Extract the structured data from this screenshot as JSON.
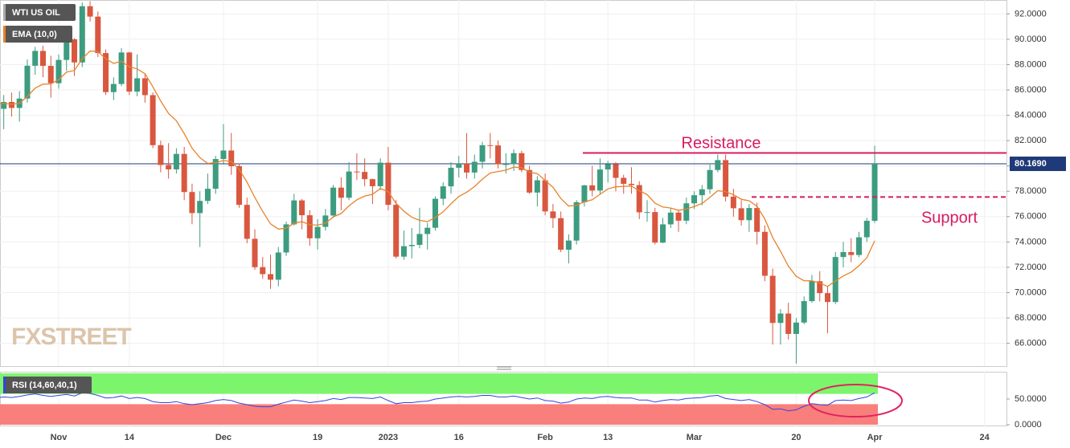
{
  "chart_data": {
    "type": "candlestick",
    "title": "WTI US OIL",
    "watermark": "FXSTREET",
    "categories": [
      null,
      null,
      null,
      null,
      null,
      null,
      null,
      null,
      "Nov",
      null,
      null,
      null,
      null,
      null,
      null,
      null,
      null,
      "14",
      null,
      null,
      null,
      null,
      null,
      null,
      null,
      null,
      null,
      null,
      null,
      "Dec",
      null,
      null,
      null,
      null,
      null,
      null,
      null,
      null,
      null,
      null,
      null,
      "19",
      null,
      null,
      null,
      null,
      null,
      null,
      null,
      null,
      "2023",
      null,
      null,
      null,
      null,
      null,
      null,
      null,
      null,
      "16",
      null,
      null,
      null,
      null,
      null,
      null,
      null,
      null,
      null,
      null,
      "Feb",
      null,
      null,
      null,
      null,
      null,
      null,
      null,
      "13",
      null,
      null,
      null,
      null,
      null,
      null,
      null,
      null,
      null,
      null,
      "Mar",
      null,
      null,
      null,
      null,
      null,
      null,
      null,
      null,
      null,
      null,
      null,
      null,
      "20",
      null,
      null,
      null,
      null,
      null,
      null,
      null,
      null,
      null,
      "Apr",
      null,
      null,
      null,
      null,
      null,
      null,
      null,
      null,
      null,
      null,
      null,
      null,
      null,
      "24"
    ],
    "open": [
      84.2,
      84.51,
      85.05,
      84.58,
      85.32,
      87.91,
      89.08,
      87.9,
      86.53,
      88.37,
      90.0,
      88.17,
      92.61,
      91.79,
      88.91,
      85.83,
      86.47,
      88.96,
      85.87,
      86.92,
      85.59,
      81.64,
      80.08,
      79.73,
      80.95,
      77.94,
      76.28,
      77.24,
      78.2,
      80.55,
      81.22,
      79.98,
      76.93,
      74.25,
      72.01,
      71.46,
      71.02,
      73.17,
      75.39,
      77.28,
      76.11,
      74.29,
      75.19,
      76.09,
      78.29,
      77.49,
      79.56,
      79.53,
      78.96,
      78.4,
      80.26,
      76.93,
      72.84,
      73.67,
      73.77,
      74.63,
      75.12,
      77.41,
      78.39,
      79.86,
      80.18,
      79.48,
      80.33,
      81.64,
      81.62,
      80.13,
      80.15,
      81.01,
      79.68,
      77.9,
      78.87,
      76.41,
      75.88,
      73.39,
      74.11,
      77.14,
      78.47,
      78.06,
      79.72,
      80.14,
      79.06,
      78.59,
      78.49,
      76.34,
      76.36,
      73.95,
      75.39,
      76.32,
      75.68,
      77.05,
      77.69,
      78.16,
      79.68,
      80.46,
      77.58,
      76.66,
      75.72,
      76.68,
      74.8,
      71.33,
      67.61,
      68.35,
      66.74,
      67.64,
      69.33,
      70.9,
      69.96,
      69.26,
      72.81,
      73.2,
      72.97,
      74.37,
      75.67,
      null,
      null,
      null,
      null,
      null,
      null,
      null,
      null,
      null,
      null,
      null,
      null,
      null,
      null
    ],
    "high": [
      85.3,
      85.6,
      85.8,
      85.9,
      88.4,
      89.4,
      89.5,
      88.7,
      88.8,
      90.4,
      90.1,
      92.9,
      93.0,
      92.2,
      89.2,
      87.0,
      89.3,
      89.0,
      88.8,
      87.3,
      85.8,
      82.0,
      81.8,
      81.4,
      81.5,
      78.6,
      78.0,
      79.4,
      80.8,
      83.3,
      82.6,
      80.2,
      77.5,
      75.0,
      72.8,
      73.0,
      73.6,
      75.6,
      77.8,
      77.4,
      76.5,
      75.8,
      76.6,
      78.5,
      79.1,
      80.3,
      81.0,
      80.6,
      79.0,
      80.6,
      81.5,
      77.3,
      74.9,
      75.1,
      76.7,
      75.5,
      77.6,
      78.7,
      80.3,
      80.8,
      82.6,
      80.9,
      81.9,
      82.6,
      82.0,
      81.0,
      81.3,
      81.2,
      80.0,
      79.2,
      79.4,
      77.0,
      76.4,
      74.6,
      77.3,
      78.5,
      80.0,
      80.6,
      80.4,
      80.3,
      79.3,
      79.9,
      78.8,
      77.3,
      76.7,
      75.9,
      76.7,
      76.5,
      77.5,
      78.0,
      78.5,
      80.1,
      80.9,
      80.9,
      78.2,
      77.3,
      77.0,
      77.1,
      75.3,
      71.9,
      68.7,
      69.2,
      68.0,
      69.7,
      71.4,
      71.7,
      70.5,
      73.2,
      74.0,
      74.3,
      74.8,
      75.9,
      81.6,
      null,
      null,
      null,
      null,
      null,
      null,
      null,
      null,
      null,
      null,
      null,
      null,
      null,
      null
    ],
    "low": [
      83.6,
      82.9,
      83.9,
      83.5,
      85.0,
      87.2,
      87.0,
      85.4,
      86.1,
      87.5,
      87.1,
      87.8,
      91.4,
      88.6,
      85.6,
      85.2,
      86.3,
      85.6,
      85.5,
      85.0,
      81.4,
      79.5,
      79.0,
      79.4,
      77.3,
      75.4,
      73.6,
      77.0,
      77.8,
      80.2,
      79.3,
      76.7,
      73.9,
      71.8,
      71.1,
      70.3,
      70.5,
      72.9,
      75.3,
      75.0,
      73.7,
      73.4,
      74.9,
      75.9,
      76.5,
      77.3,
      78.9,
      78.4,
      77.0,
      78.1,
      76.5,
      72.7,
      72.6,
      72.7,
      73.5,
      73.4,
      74.9,
      76.9,
      77.8,
      79.1,
      79.0,
      79.0,
      79.8,
      80.6,
      79.8,
      79.4,
      79.6,
      79.5,
      77.8,
      76.8,
      76.1,
      75.1,
      73.2,
      72.3,
      73.8,
      76.8,
      77.6,
      77.8,
      78.7,
      78.0,
      77.8,
      77.8,
      75.8,
      75.6,
      73.8,
      73.9,
      75.1,
      74.8,
      75.4,
      76.6,
      76.9,
      77.8,
      79.5,
      77.2,
      76.0,
      75.3,
      74.8,
      73.8,
      70.9,
      65.9,
      65.9,
      66.3,
      64.4,
      67.5,
      69.2,
      69.3,
      66.8,
      69.1,
      72.0,
      72.4,
      72.8,
      74.0,
      75.5,
      null,
      null,
      null,
      null,
      null,
      null,
      null,
      null,
      null,
      null,
      null,
      null,
      null,
      null
    ],
    "close": [
      84.51,
      85.05,
      84.58,
      85.32,
      87.91,
      89.08,
      87.9,
      86.53,
      88.37,
      90.0,
      88.17,
      92.61,
      91.79,
      88.91,
      85.83,
      86.47,
      88.96,
      85.87,
      86.92,
      85.59,
      81.64,
      80.08,
      79.73,
      80.95,
      77.94,
      76.28,
      77.24,
      78.2,
      80.55,
      81.22,
      79.98,
      76.93,
      74.25,
      72.01,
      71.46,
      71.02,
      73.17,
      75.39,
      77.28,
      76.11,
      74.29,
      75.19,
      76.09,
      78.29,
      77.49,
      79.56,
      79.53,
      78.96,
      78.4,
      80.26,
      76.93,
      72.84,
      73.67,
      73.77,
      74.63,
      75.12,
      77.41,
      78.39,
      79.86,
      80.18,
      79.48,
      80.33,
      81.64,
      81.62,
      80.13,
      80.15,
      81.01,
      79.68,
      77.9,
      78.87,
      76.41,
      75.88,
      73.39,
      74.11,
      77.14,
      78.47,
      78.06,
      79.72,
      80.14,
      79.06,
      78.59,
      78.49,
      76.34,
      76.36,
      73.95,
      75.39,
      76.32,
      75.68,
      77.05,
      77.69,
      78.16,
      79.68,
      80.46,
      77.58,
      76.66,
      75.72,
      76.68,
      74.8,
      71.33,
      67.61,
      68.35,
      66.74,
      67.64,
      69.33,
      70.9,
      69.96,
      69.26,
      72.81,
      73.2,
      72.97,
      74.37,
      75.67,
      80.17,
      null,
      null,
      null,
      null,
      null,
      null,
      null,
      null,
      null,
      null,
      null,
      null,
      null,
      null
    ],
    "up_color": "#3d9c80",
    "down_color": "#d9573f",
    "overlays": [
      {
        "name": "EMA (10,0)",
        "color": "#e8832a",
        "values": [
          84.91,
          84.94,
          84.87,
          84.95,
          85.49,
          86.14,
          86.46,
          86.47,
          86.82,
          87.4,
          87.54,
          88.46,
          89.07,
          89.04,
          88.46,
          88.1,
          88.26,
          87.83,
          87.66,
          87.28,
          86.25,
          85.13,
          84.15,
          83.57,
          82.55,
          81.41,
          80.65,
          80.2,
          80.26,
          80.43,
          80.35,
          79.73,
          78.73,
          77.51,
          76.41,
          75.43,
          75.02,
          75.09,
          75.49,
          75.6,
          75.36,
          75.33,
          75.47,
          75.98,
          76.25,
          76.85,
          77.33,
          77.62,
          77.76,
          78.21,
          77.98,
          77.04,
          76.43,
          75.95,
          75.71,
          75.6,
          75.93,
          76.38,
          77.01,
          77.59,
          77.93,
          78.37,
          78.96,
          79.44,
          79.56,
          79.67,
          79.91,
          79.87,
          79.51,
          79.39,
          78.85,
          78.32,
          77.43,
          76.83,
          76.89,
          77.17,
          77.33,
          77.76,
          78.19,
          78.35,
          78.39,
          78.41,
          78.04,
          77.74,
          77.06,
          76.76,
          76.68,
          76.5,
          76.6,
          76.8,
          77.04,
          77.52,
          78.05,
          77.97,
          77.73,
          77.37,
          77.25,
          76.81,
          75.82,
          74.34,
          73.26,
          72.09,
          71.29,
          70.94,
          70.93,
          70.76,
          70.49,
          70.91,
          71.32,
          71.62,
          72.12,
          72.76,
          74.09,
          null,
          null,
          null,
          null,
          null,
          null,
          null,
          null,
          null,
          null,
          null,
          null,
          null,
          null
        ]
      }
    ],
    "ylim": [
      64.2,
      93.1
    ],
    "yticks": [
      {
        "value": 66,
        "label": "66.0000"
      },
      {
        "value": 68,
        "label": "68.0000"
      },
      {
        "value": 70,
        "label": "70.0000"
      },
      {
        "value": 72,
        "label": "72.0000"
      },
      {
        "value": 74,
        "label": "74.0000"
      },
      {
        "value": 76,
        "label": "76.0000"
      },
      {
        "value": 78,
        "label": "78.0000"
      },
      {
        "value": 80,
        "label": "80.0000"
      },
      {
        "value": 82,
        "label": "82.0000"
      },
      {
        "value": 84,
        "label": "84.0000"
      },
      {
        "value": 86,
        "label": "86.0000"
      },
      {
        "value": 88,
        "label": "88.0000"
      },
      {
        "value": 90,
        "label": "90.0000"
      },
      {
        "value": 92,
        "label": "92.0000"
      }
    ],
    "grid": true,
    "last_price": {
      "value": 80.169,
      "label": "80.1690",
      "color": "#1f3a78"
    },
    "annotations": [
      {
        "text": "Resistance",
        "value": 81.03,
        "color": "#d81b60",
        "style": "solid"
      },
      {
        "text": "Support",
        "value": 77.55,
        "color": "#d81b60",
        "style": "dashed"
      }
    ],
    "indicator": {
      "name": "RSI (14,60,40,1)",
      "color": "#3344dd",
      "values": [
        52,
        54,
        53,
        55,
        58,
        60,
        57,
        55,
        57,
        59,
        56,
        62,
        61,
        57,
        52,
        53,
        56,
        51,
        53,
        51,
        45,
        43,
        43,
        45,
        41,
        39,
        41,
        43,
        47,
        49,
        47,
        42,
        39,
        36,
        35,
        35,
        40,
        44,
        48,
        46,
        43,
        45,
        47,
        51,
        49,
        53,
        53,
        52,
        51,
        54,
        47,
        41,
        43,
        43,
        45,
        46,
        50,
        52,
        54,
        55,
        54,
        55,
        57,
        57,
        54,
        54,
        56,
        53,
        50,
        52,
        47,
        46,
        42,
        44,
        50,
        52,
        51,
        54,
        55,
        53,
        52,
        52,
        48,
        48,
        44,
        47,
        49,
        48,
        51,
        52,
        53,
        56,
        57,
        51,
        49,
        47,
        49,
        45,
        39,
        30,
        31,
        27,
        29,
        36,
        41,
        39,
        38,
        47,
        48,
        47,
        51,
        54,
        62,
        null,
        null,
        null,
        null,
        null,
        null,
        null,
        null,
        null,
        null,
        null,
        null,
        null,
        null
      ],
      "ylim": [
        0,
        100
      ],
      "yticks": [
        {
          "value": 0,
          "label": "0.0000"
        },
        {
          "value": 50,
          "label": "50.0000"
        }
      ],
      "upper": 60,
      "lower": 40,
      "upper_color": "#7cf56c",
      "lower_color": "#f97f7c"
    }
  }
}
